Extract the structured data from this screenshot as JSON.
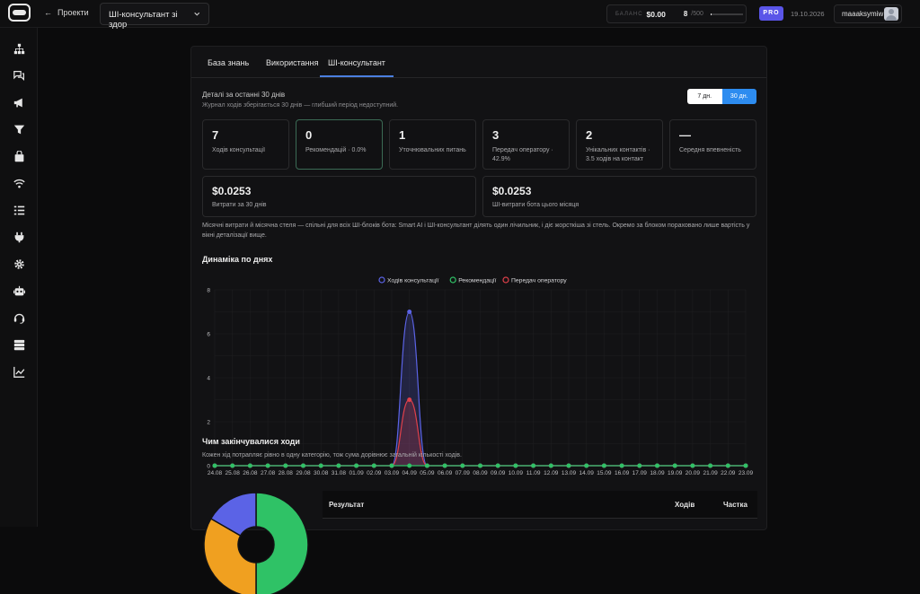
{
  "topbar": {
    "back_label": "Проекти",
    "back_arrow": "←",
    "project_name": "ШІ-консультант зі здор",
    "balance_label": "БАЛАНС",
    "balance_value": "$0.00",
    "credits_used": "8",
    "credits_max": "/500",
    "credits_fraction": 0.016,
    "plan_badge": "PRO",
    "date": "19.10.2026",
    "username": "maaaksymiw"
  },
  "sidebar": {
    "icons": [
      "sitemap-icon",
      "chat-bubbles-icon",
      "megaphone-icon",
      "filter-icon",
      "bag-icon",
      "wifi-icon",
      "list-check-icon",
      "plug-icon",
      "gear-icon",
      "robot-icon",
      "headset-icon",
      "server-icon",
      "chart-line-icon"
    ]
  },
  "tabs": [
    {
      "label": "База знань",
      "active": false
    },
    {
      "label": "Використання",
      "active": false
    },
    {
      "label": "ШІ-консультант",
      "active": true
    }
  ],
  "period": {
    "title": "Деталі за останні 30 днів",
    "note": "Журнал ходів зберігається 30 днів — глибший період недоступний.",
    "range_options": [
      "7 дн.",
      "30 дн."
    ],
    "range_selected": "30 дн."
  },
  "stats": [
    {
      "value": "7",
      "label": "Ходів консультації"
    },
    {
      "value": "0",
      "label": "Рекомендацій · 0.0%"
    },
    {
      "value": "1",
      "label": "Уточнювальних питань"
    },
    {
      "value": "3",
      "label": "Передач оператору · 42.9%"
    },
    {
      "value": "2",
      "label": "Унікальних контактів · 3.5 ходів на контакт"
    },
    {
      "value": "—",
      "label": "Середня впевненість"
    }
  ],
  "costs": [
    {
      "value": "$0.0253",
      "label": "Витрати за 30 днів"
    },
    {
      "value": "$0.0253",
      "label": "ШІ-витрати бота цього місяця"
    }
  ],
  "cost_note": "Місячні витрати й місячна стеля — спільні для всіх ШІ-блоків бота: Smart AI і ШІ-консультант ділять один лічильник, і діє жорсткіша зі стель. Окремо за блоком пораховано лише вартість у вікні деталізації вище.",
  "dynamics_title": "Динаміка по днях",
  "chart_data": {
    "type": "line",
    "x": [
      "24.08",
      "25.08",
      "26.08",
      "27.08",
      "28.08",
      "29.08",
      "30.08",
      "31.08",
      "01.09",
      "02.09",
      "03.09",
      "04.09",
      "05.09",
      "06.09",
      "07.09",
      "08.09",
      "09.09",
      "10.09",
      "11.09",
      "12.09",
      "13.09",
      "14.09",
      "15.09",
      "16.09",
      "17.09",
      "18.09",
      "19.09",
      "20.09",
      "21.09",
      "22.09",
      "23.09"
    ],
    "series": [
      {
        "name": "Ходів консультації",
        "color": "#5b63e6",
        "values": [
          0,
          0,
          0,
          0,
          0,
          0,
          0,
          0,
          0,
          0,
          0,
          7,
          0,
          0,
          0,
          0,
          0,
          0,
          0,
          0,
          0,
          0,
          0,
          0,
          0,
          0,
          0,
          0,
          0,
          0,
          0
        ]
      },
      {
        "name": "Рекомендації",
        "color": "#2fc266",
        "values": [
          0,
          0,
          0,
          0,
          0,
          0,
          0,
          0,
          0,
          0,
          0,
          0,
          0,
          0,
          0,
          0,
          0,
          0,
          0,
          0,
          0,
          0,
          0,
          0,
          0,
          0,
          0,
          0,
          0,
          0,
          0
        ]
      },
      {
        "name": "Передач оператору",
        "color": "#e0404a",
        "values": [
          0,
          0,
          0,
          0,
          0,
          0,
          0,
          0,
          0,
          0,
          0,
          3,
          0,
          0,
          0,
          0,
          0,
          0,
          0,
          0,
          0,
          0,
          0,
          0,
          0,
          0,
          0,
          0,
          0,
          0,
          0
        ]
      }
    ],
    "yticks": [
      "0",
      "2",
      "4",
      "6",
      "8"
    ],
    "ylim": [
      0,
      8
    ],
    "legend_position": "top-center",
    "grid": true
  },
  "endings": {
    "title": "Чим закінчувалися ходи",
    "note": "Кожен хід потрапляє рівно в одну категорію, тож сума дорівнює загальній кількості ходів.",
    "headers": [
      "Результат",
      "Ходів",
      "Частка"
    ],
    "pie_colors": [
      "#2fc266",
      "#f0a020",
      "#5b63e6"
    ]
  }
}
